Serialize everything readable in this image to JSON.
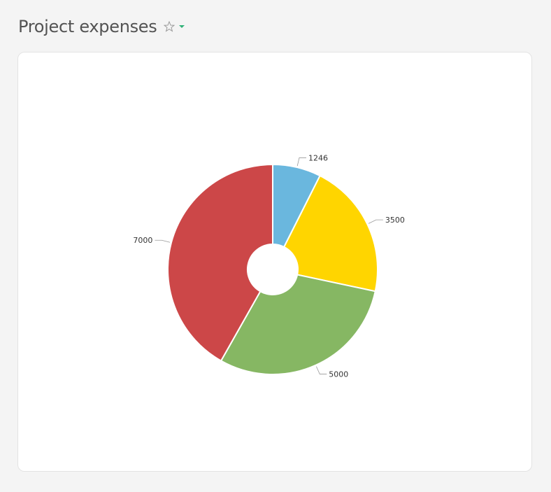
{
  "header": {
    "title": "Project expenses",
    "favorite_icon": "star-outline-icon",
    "menu_icon": "caret-down-icon"
  },
  "colors": {
    "accent": "#2fb177",
    "slice_1": "#6ab7de",
    "slice_2": "#ffd500",
    "slice_3": "#86b763",
    "slice_4": "#cc4748"
  },
  "chart_data": {
    "type": "pie",
    "variant": "donut",
    "title": "",
    "categories": [
      "",
      "",
      "",
      ""
    ],
    "values": [
      1246,
      3500,
      5000,
      7000
    ],
    "labels": [
      "1246",
      "3500",
      "5000",
      "7000"
    ],
    "legend": "none"
  }
}
